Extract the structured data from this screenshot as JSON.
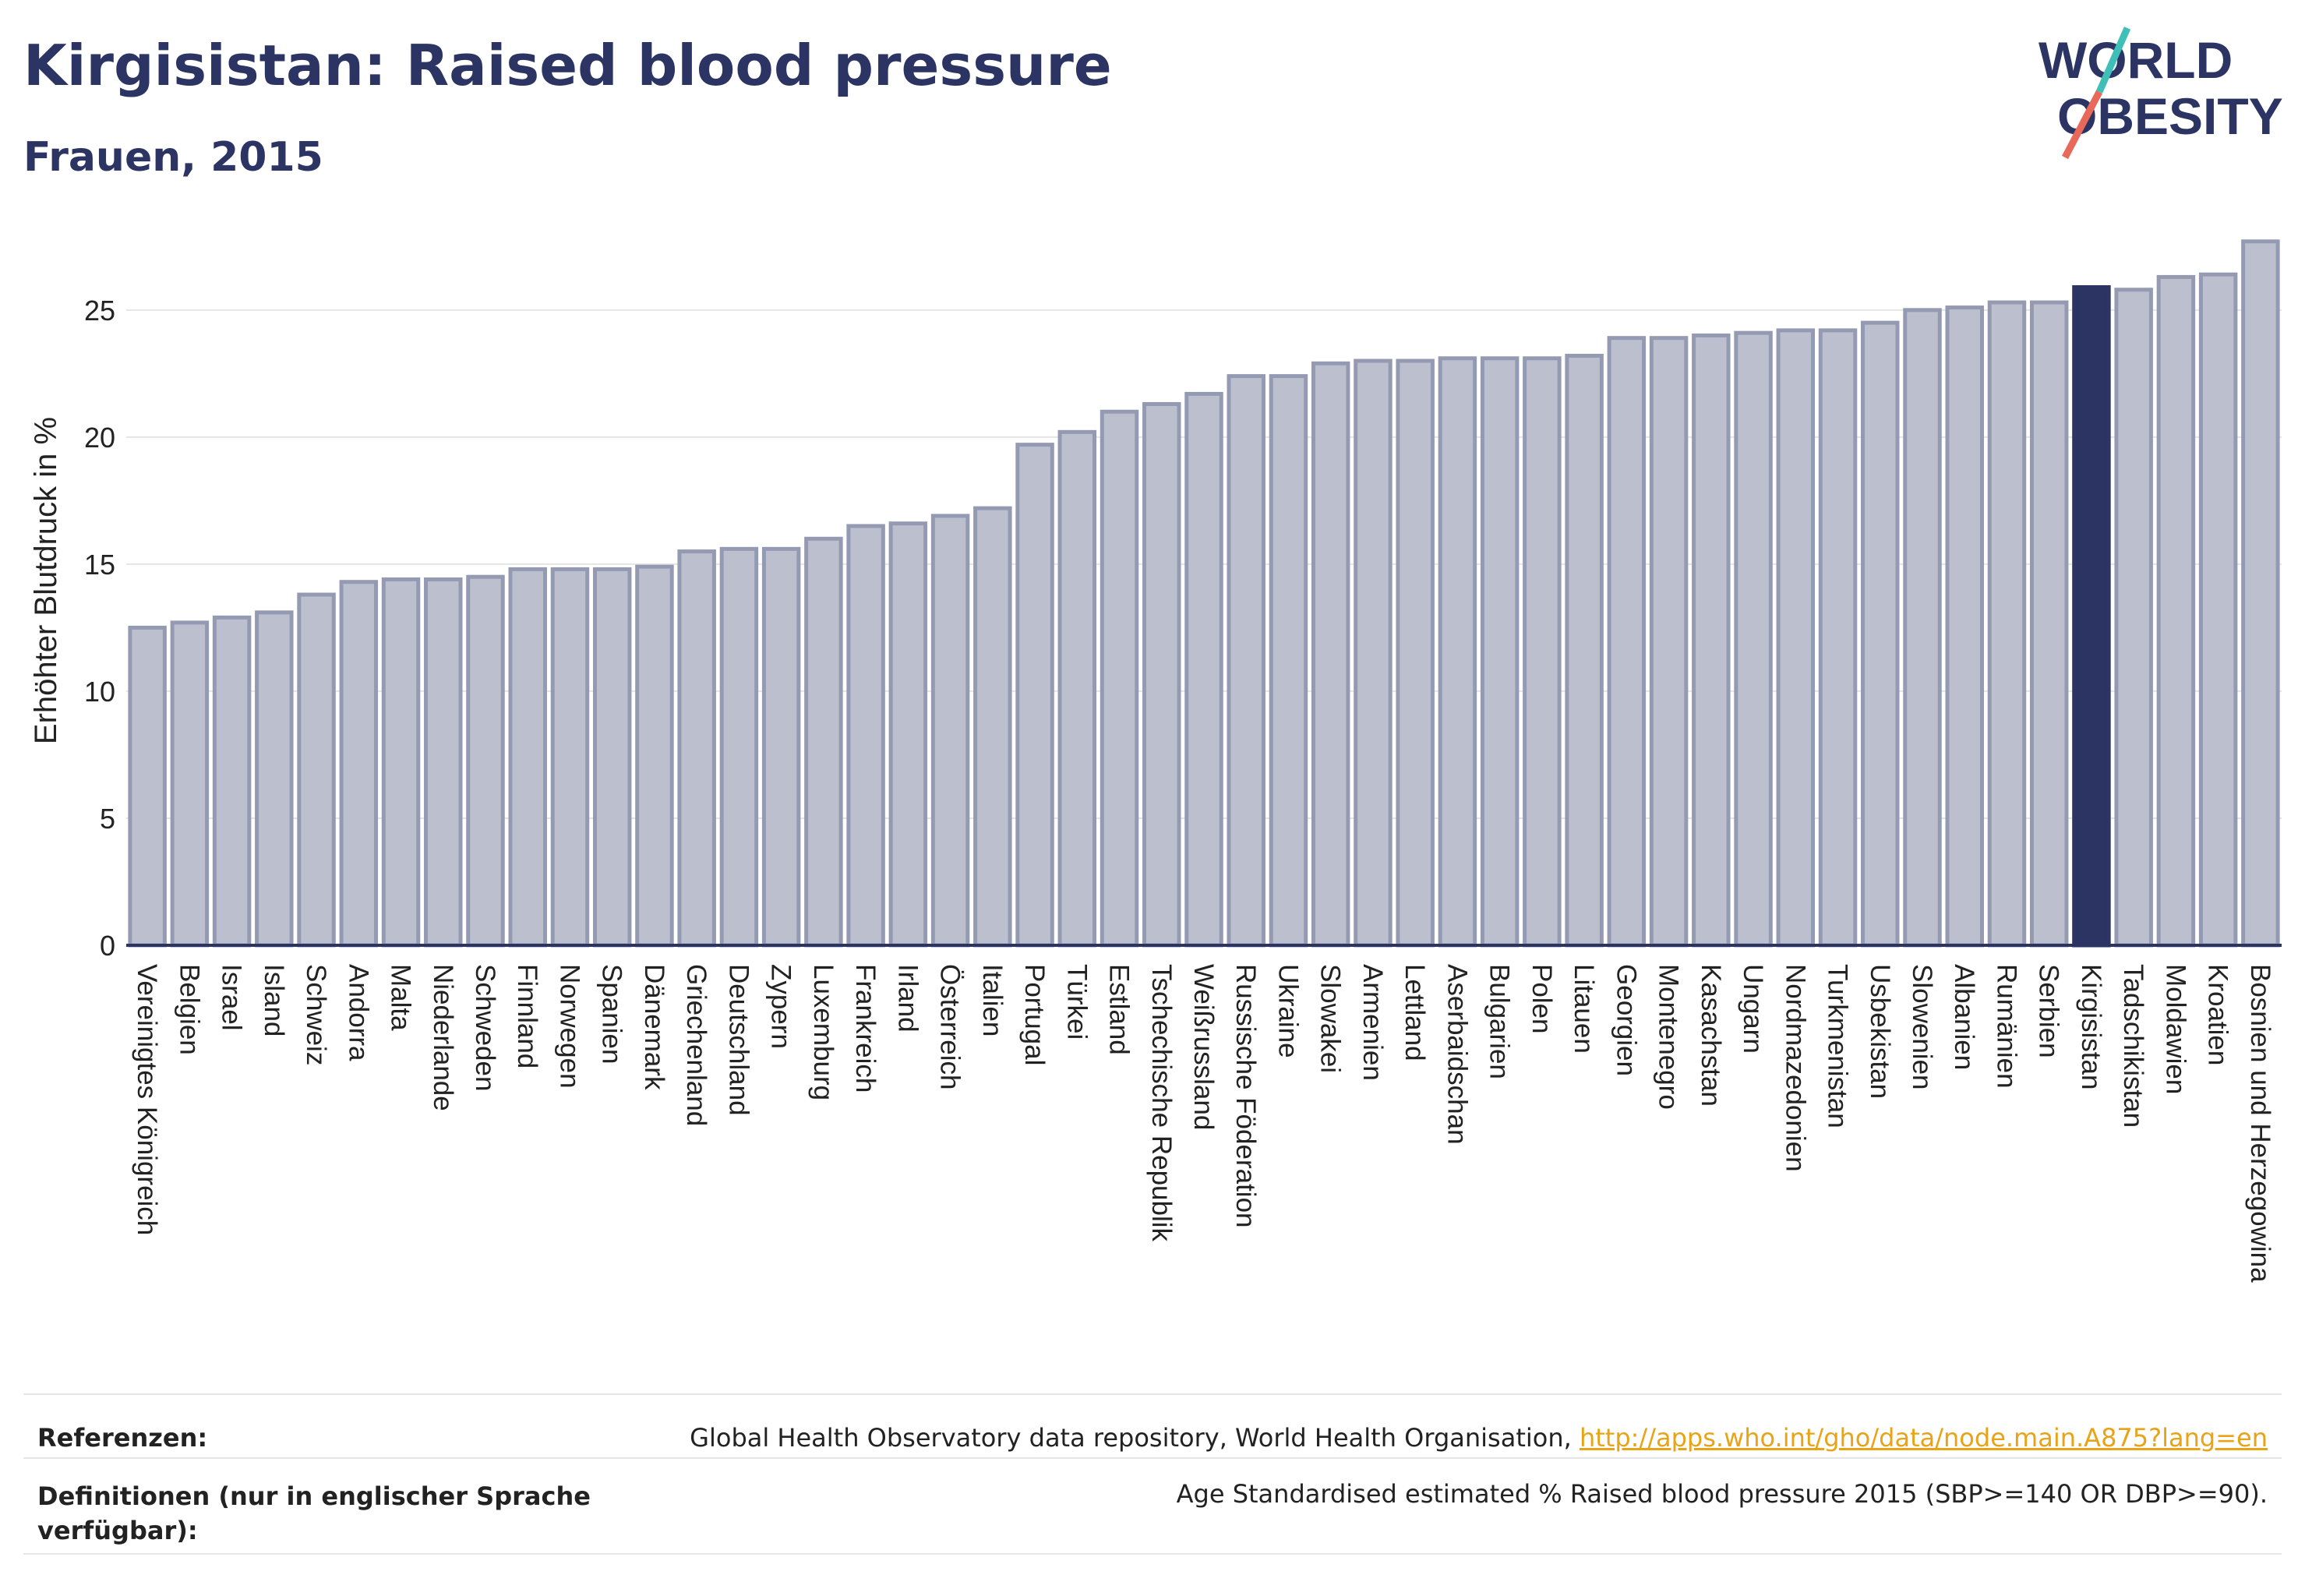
{
  "header": {
    "title": "Kirgisistan: Raised blood pressure",
    "subtitle": "Frauen, 2015",
    "logo_line1": "WORLD",
    "logo_line2": "OBESITY"
  },
  "colors": {
    "bar": "#bcc0ce",
    "bar_border": "#949ab2",
    "highlight": "#2b3462",
    "title": "#2b3462",
    "link": "#e8a317"
  },
  "chart_data": {
    "type": "bar",
    "ylabel": "Erhöhter Blutdruck in %",
    "xlabel": "",
    "ylim": [
      0,
      28
    ],
    "yticks": [
      0,
      5,
      10,
      15,
      20,
      25
    ],
    "grid": true,
    "highlight": "Kirgisistan",
    "categories": [
      "Vereinigtes Königreich",
      "Belgien",
      "Israel",
      "Island",
      "Schweiz",
      "Andorra",
      "Malta",
      "Niederlande",
      "Schweden",
      "Finnland",
      "Norwegen",
      "Spanien",
      "Dänemark",
      "Griechenland",
      "Deutschland",
      "Zypern",
      "Luxemburg",
      "Frankreich",
      "Irland",
      "Österreich",
      "Italien",
      "Portugal",
      "Türkei",
      "Estland",
      "Tschechische Republik",
      "Weißrussland",
      "Russische Föderation",
      "Ukraine",
      "Slowakei",
      "Armenien",
      "Lettland",
      "Aserbaidschan",
      "Bulgarien",
      "Polen",
      "Litauen",
      "Georgien",
      "Montenegro",
      "Kasachstan",
      "Ungarn",
      "Nordmazedonien",
      "Turkmenistan",
      "Usbekistan",
      "Slowenien",
      "Albanien",
      "Rumänien",
      "Serbien",
      "Kirgisistan",
      "Tadschikistan",
      "Moldawien",
      "Kroatien",
      "Bosnien und Herzegowina"
    ],
    "values": [
      12.5,
      12.7,
      12.9,
      13.1,
      13.8,
      14.3,
      14.4,
      14.4,
      14.5,
      14.8,
      14.8,
      14.8,
      14.9,
      15.5,
      15.6,
      15.6,
      16.0,
      16.5,
      16.6,
      16.9,
      17.2,
      19.7,
      20.2,
      21.0,
      21.3,
      21.7,
      22.4,
      22.4,
      22.9,
      23.0,
      23.0,
      23.1,
      23.1,
      23.1,
      23.2,
      23.9,
      23.9,
      24.0,
      24.1,
      24.2,
      24.2,
      24.5,
      25.0,
      25.1,
      25.3,
      25.3,
      25.9,
      25.8,
      26.3,
      26.4,
      27.7
    ]
  },
  "footer": {
    "ref_label": "Referenzen:",
    "ref_text": "Global Health Observatory data repository, World Health Organisation, ",
    "ref_link": "http://apps.who.int/gho/data/node.main.A875?lang=en",
    "def_label_1": "Definitionen (nur in englischer Sprache",
    "def_label_2": "verfügbar):",
    "def_text": "Age Standardised estimated % Raised blood pressure 2015 (SBP>=140 OR DBP>=90)."
  }
}
